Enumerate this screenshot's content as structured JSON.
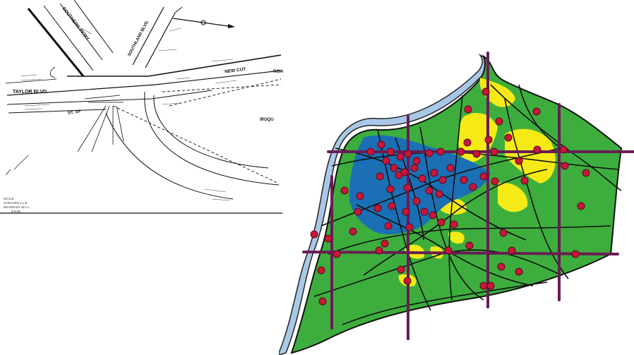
{
  "left_map": {
    "road_labels": {
      "southern_pkwy": "SOUTHERN PKWY",
      "southland_blvd": "SOUTHLAND BLVD.",
      "taylor_blvd": "TAYLOR BLVD.",
      "new_cut": "NEW CUT",
      "road_partial": "ROA",
      "iroquois_partial": "IROQU",
      "st_sp": "ST. SP"
    },
    "key_lines": [
      "SCALE",
      "CHECKED J.L.B.",
      "DRAWN BY W.L.L.",
      "5-8-66"
    ]
  },
  "right_map": {
    "colors": {
      "river": "#a9c8e8",
      "land": "#3dae3d",
      "core": "#1a6fb5",
      "yellow": "#f5ea16",
      "grid": "#6a1c55",
      "station": "#c8173a",
      "road": "#101010"
    }
  }
}
